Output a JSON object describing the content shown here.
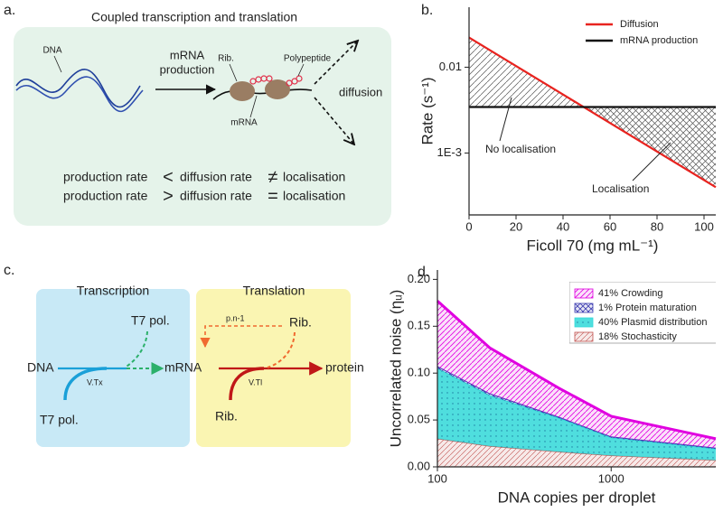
{
  "panel_labels": [
    "a.",
    "b.",
    "c.",
    "d."
  ],
  "diagram_a": {
    "title": "Coupled transcription and translation",
    "dna": "DNA",
    "arrow_label": [
      "mRNA",
      "production"
    ],
    "ribosome": "Rib.",
    "polypeptide": "Polypeptide",
    "mrna": "mRNA",
    "diffusion": "diffusion",
    "rows": [
      [
        "production rate",
        "<",
        "diffusion rate",
        "≠",
        "localisation"
      ],
      [
        "production rate",
        ">",
        "diffusion rate",
        "=",
        "localisation"
      ]
    ]
  },
  "diagram_c": {
    "transcription": "Transcription",
    "translation": "Translation",
    "t7_top": "T7 pol.",
    "dna": "DNA",
    "vtx": "V.Tx",
    "mrna": "mRNA",
    "t7_bottom": "T7 pol.",
    "pn": "p.n-1",
    "rib_top": "Rib.",
    "vtl": "V.Tl",
    "protein": "protein",
    "rib_bottom": "Rib."
  },
  "chart_data": [
    {
      "type": "line",
      "x_label": "Ficoll 70 (mg mL⁻¹)",
      "y_label": "Rate (s⁻¹)",
      "x": [
        0,
        105
      ],
      "series": [
        {
          "name": "Diffusion",
          "color": "#e8231f",
          "values": [
            0.0222,
            0.0004
          ]
        },
        {
          "name": "mRNA production",
          "color": "#111111",
          "values": [
            0.00344,
            0.00344
          ]
        }
      ],
      "xlim": [
        0,
        105
      ],
      "xticks": [
        0,
        20,
        40,
        60,
        80,
        100
      ],
      "ylim": [
        0.00019,
        0.05
      ],
      "yscale": "log",
      "yticks": [
        0.01,
        {
          "value": 0.001,
          "label": "1E-3"
        }
      ],
      "legend": "upper right",
      "annotations": [
        "No localisation",
        "Localisation"
      ]
    },
    {
      "type": "area",
      "stacked": true,
      "x_label": "DNA copies per droplet",
      "y_label": "Uncorrelated noise (ηᵤ)",
      "x": [
        100,
        200,
        500,
        1000,
        4000
      ],
      "series": [
        {
          "name": "41% Crowding",
          "color": "#e000e0",
          "pattern": "hatch",
          "values": [
            0.07,
            0.049,
            0.031,
            0.022,
            0.01
          ]
        },
        {
          "name": "1% Protein maturation",
          "color": "#3a3ab0",
          "pattern": "crosshatch",
          "values": [
            0.002,
            0.002,
            0.001,
            0.001,
            0.001
          ]
        },
        {
          "name": "40% Plasmid distribution",
          "color": "#30d8d8",
          "pattern": "dots",
          "values": [
            0.075,
            0.054,
            0.036,
            0.019,
            0.012
          ]
        },
        {
          "name": "18% Stochasticity",
          "color": "#c0504d",
          "pattern": "backhatch",
          "values": [
            0.03,
            0.022,
            0.016,
            0.012,
            0.007
          ]
        }
      ],
      "xlim": [
        100,
        4000
      ],
      "xscale": "log",
      "xticks": [
        100,
        1000
      ],
      "ylim": [
        0,
        0.21
      ],
      "yticks": [
        {
          "value": 0,
          "label": "0.00"
        },
        {
          "value": 0.05,
          "label": "0.05"
        },
        {
          "value": 0.1,
          "label": "0.10"
        },
        {
          "value": 0.15,
          "label": "0.15"
        },
        {
          "value": 0.2,
          "label": "0.20"
        }
      ],
      "legend": "upper right"
    }
  ]
}
